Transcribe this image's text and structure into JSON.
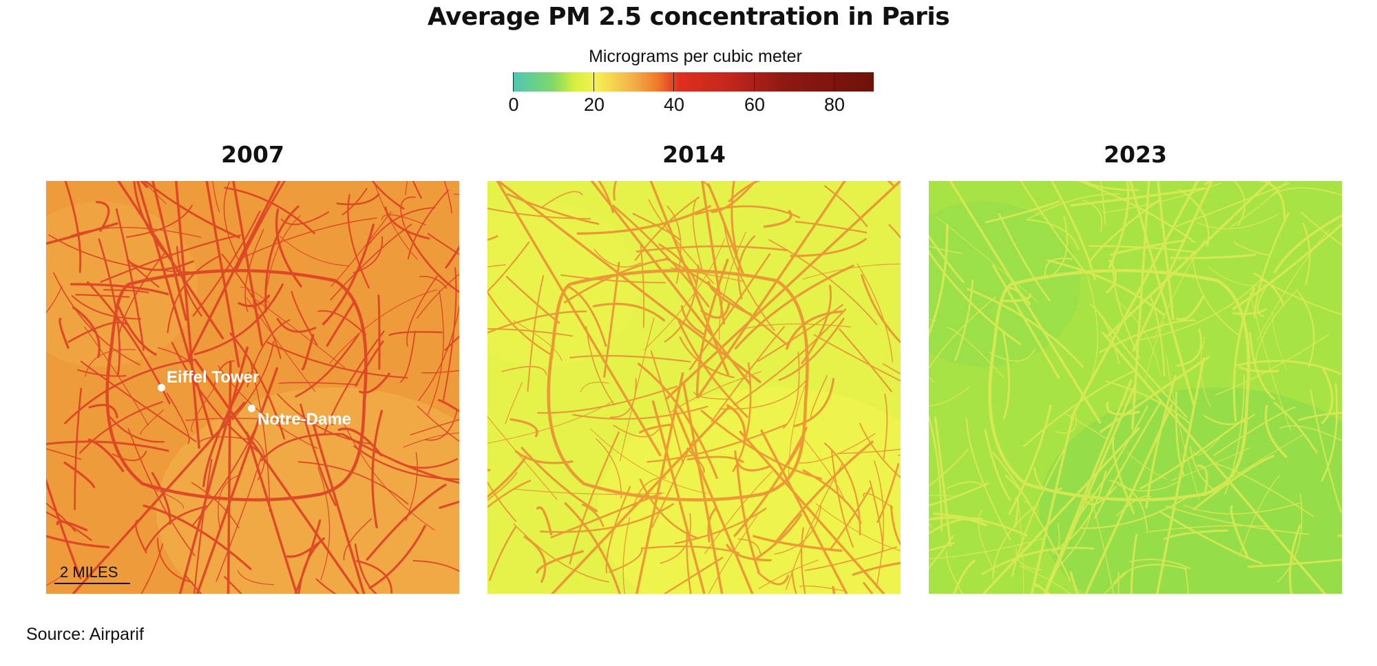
{
  "title": "Average PM 2.5 concentration in Paris",
  "legend": {
    "title": "Micrograms per cubic meter",
    "ticks": [
      "0",
      "20",
      "40",
      "60",
      "80"
    ],
    "range": [
      0,
      90
    ]
  },
  "panels": [
    {
      "year": "2007",
      "base_color": "#ee9b3b",
      "road_color": "#dc3a22",
      "variation_color": "#f3b44c"
    },
    {
      "year": "2014",
      "base_color": "#e4f24a",
      "road_color": "#ec8a33",
      "variation_color": "#f6f64e"
    },
    {
      "year": "2023",
      "base_color": "#a7e345",
      "road_color": "#e6ec57",
      "variation_color": "#86d94c"
    }
  ],
  "places": {
    "eiffel": {
      "label": "Eiffel Tower"
    },
    "notre_dame": {
      "label": "Notre-Dame"
    }
  },
  "scale_bar": "2 MILES",
  "source": "Source: Airparif"
}
